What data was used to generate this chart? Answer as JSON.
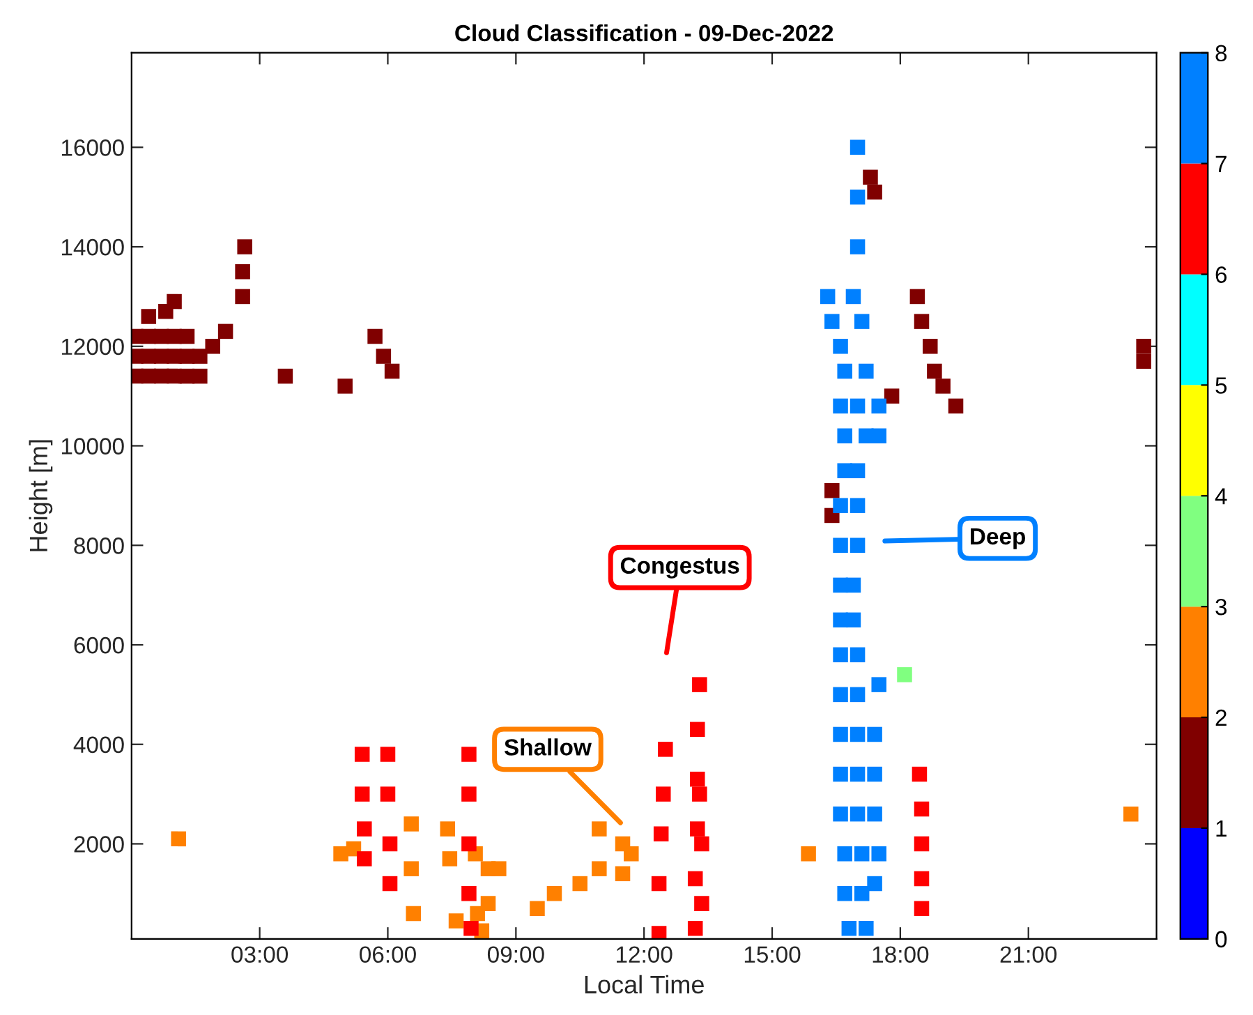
{
  "chart_data": {
    "type": "scatter",
    "title": "Cloud Classification - 09-Dec-2022",
    "xlabel": "Local Time",
    "ylabel": "Height [m]",
    "xlim": [
      0,
      24
    ],
    "ylim": [
      90,
      17900
    ],
    "xticks": [
      {
        "value": 3,
        "label": "03:00"
      },
      {
        "value": 6,
        "label": "06:00"
      },
      {
        "value": 9,
        "label": "09:00"
      },
      {
        "value": 12,
        "label": "12:00"
      },
      {
        "value": 15,
        "label": "15:00"
      },
      {
        "value": 18,
        "label": "18:00"
      },
      {
        "value": 21,
        "label": "21:00"
      }
    ],
    "yticks": [
      2000,
      4000,
      6000,
      8000,
      10000,
      12000,
      14000,
      16000
    ],
    "clim": [
      0,
      8
    ],
    "cticks": [
      0,
      1,
      2,
      3,
      4,
      5,
      6,
      7,
      8
    ],
    "marker": "square",
    "grid": false,
    "legend": false,
    "series": [
      {
        "color": "#800000",
        "x": [
          0.1,
          0.4,
          0.7,
          1.0,
          1.3,
          1.6,
          0.1,
          0.4,
          0.7,
          1.0,
          1.3,
          1.6,
          0.1,
          0.4,
          0.7,
          1.0,
          1.3,
          0.4,
          0.8,
          1.0,
          1.9,
          2.2,
          2.6,
          2.6,
          2.65,
          3.6,
          5.0,
          5.7,
          5.9,
          6.1,
          16.4,
          16.4,
          17.4,
          17.3,
          18.4,
          18.5,
          18.7,
          18.8,
          19.0,
          17.8,
          23.7,
          23.7,
          19.3
        ],
        "values": [
          11400,
          11400,
          11400,
          11400,
          11400,
          11400,
          11800,
          11800,
          11800,
          11800,
          11800,
          11800,
          12200,
          12200,
          12200,
          12200,
          12200,
          12600,
          12700,
          12900,
          12000,
          12300,
          13000,
          13500,
          14000,
          11400,
          11200,
          12200,
          11800,
          11500,
          8600,
          9100,
          15100,
          15400,
          13000,
          12500,
          12000,
          11500,
          11200,
          11000,
          12000,
          11700,
          10800
        ]
      },
      {
        "color": "#ff8000",
        "x": [
          1.1,
          4.9,
          5.2,
          6.55,
          6.55,
          6.6,
          7.4,
          7.45,
          8.05,
          8.35,
          8.35,
          8.6,
          7.6,
          8.1,
          8.2,
          9.5,
          9.9,
          10.5,
          10.95,
          10.95,
          11.5,
          11.5,
          11.7,
          15.85,
          23.4
        ],
        "values": [
          2100,
          1800,
          1900,
          2400,
          1500,
          600,
          2300,
          1700,
          1800,
          1500,
          800,
          1500,
          450,
          600,
          250,
          700,
          1000,
          1200,
          2300,
          1500,
          2000,
          1400,
          1800,
          1800,
          2600
        ]
      },
      {
        "color": "#80ff80",
        "x": [
          18.1
        ],
        "values": [
          5400
        ]
      },
      {
        "color": "#ff0000",
        "x": [
          5.4,
          5.4,
          5.45,
          5.45,
          6.0,
          6.0,
          6.05,
          6.05,
          7.9,
          7.9,
          7.9,
          7.9,
          7.95,
          12.35,
          12.35,
          12.4,
          12.45,
          12.5,
          13.2,
          13.2,
          13.25,
          13.25,
          13.25,
          13.3,
          13.35,
          13.35,
          13.3,
          18.45,
          18.5,
          18.5,
          18.5,
          18.5
        ],
        "values": [
          3800,
          3000,
          2300,
          1700,
          3800,
          3000,
          2000,
          1200,
          3800,
          3000,
          2000,
          1000,
          300,
          200,
          1200,
          2200,
          3000,
          3900,
          300,
          1300,
          2300,
          3300,
          4300,
          5200,
          800,
          2000,
          3000,
          3400,
          2700,
          2000,
          1300,
          700
        ]
      },
      {
        "color": "#0080ff",
        "x": [
          17.0,
          17.0,
          17.0,
          16.9,
          16.3,
          16.4,
          16.6,
          17.1,
          16.7,
          17.2,
          16.6,
          17.0,
          17.5,
          16.7,
          17.2,
          17.5,
          16.7,
          17.0,
          16.6,
          17.0,
          16.6,
          17.0,
          16.6,
          16.9,
          16.6,
          16.9,
          16.6,
          17.0,
          16.6,
          17.0,
          17.5,
          16.6,
          17.0,
          17.4,
          16.6,
          17.0,
          17.4,
          16.6,
          17.0,
          17.4,
          16.7,
          17.1,
          17.5,
          16.7,
          17.1,
          17.4,
          16.8,
          17.2
        ],
        "values": [
          16000,
          15000,
          14000,
          13000,
          13000,
          12500,
          12000,
          12500,
          11500,
          11500,
          10800,
          10800,
          10800,
          10200,
          10200,
          10200,
          9500,
          9500,
          8800,
          8800,
          8000,
          8000,
          7200,
          7200,
          6500,
          6500,
          5800,
          5800,
          5000,
          5000,
          5200,
          4200,
          4200,
          4200,
          3400,
          3400,
          3400,
          2600,
          2600,
          2600,
          1800,
          1800,
          1800,
          1000,
          1000,
          1200,
          300,
          300
        ]
      }
    ],
    "annotations": [
      "Congestus",
      "Shallow",
      "Deep"
    ]
  }
}
